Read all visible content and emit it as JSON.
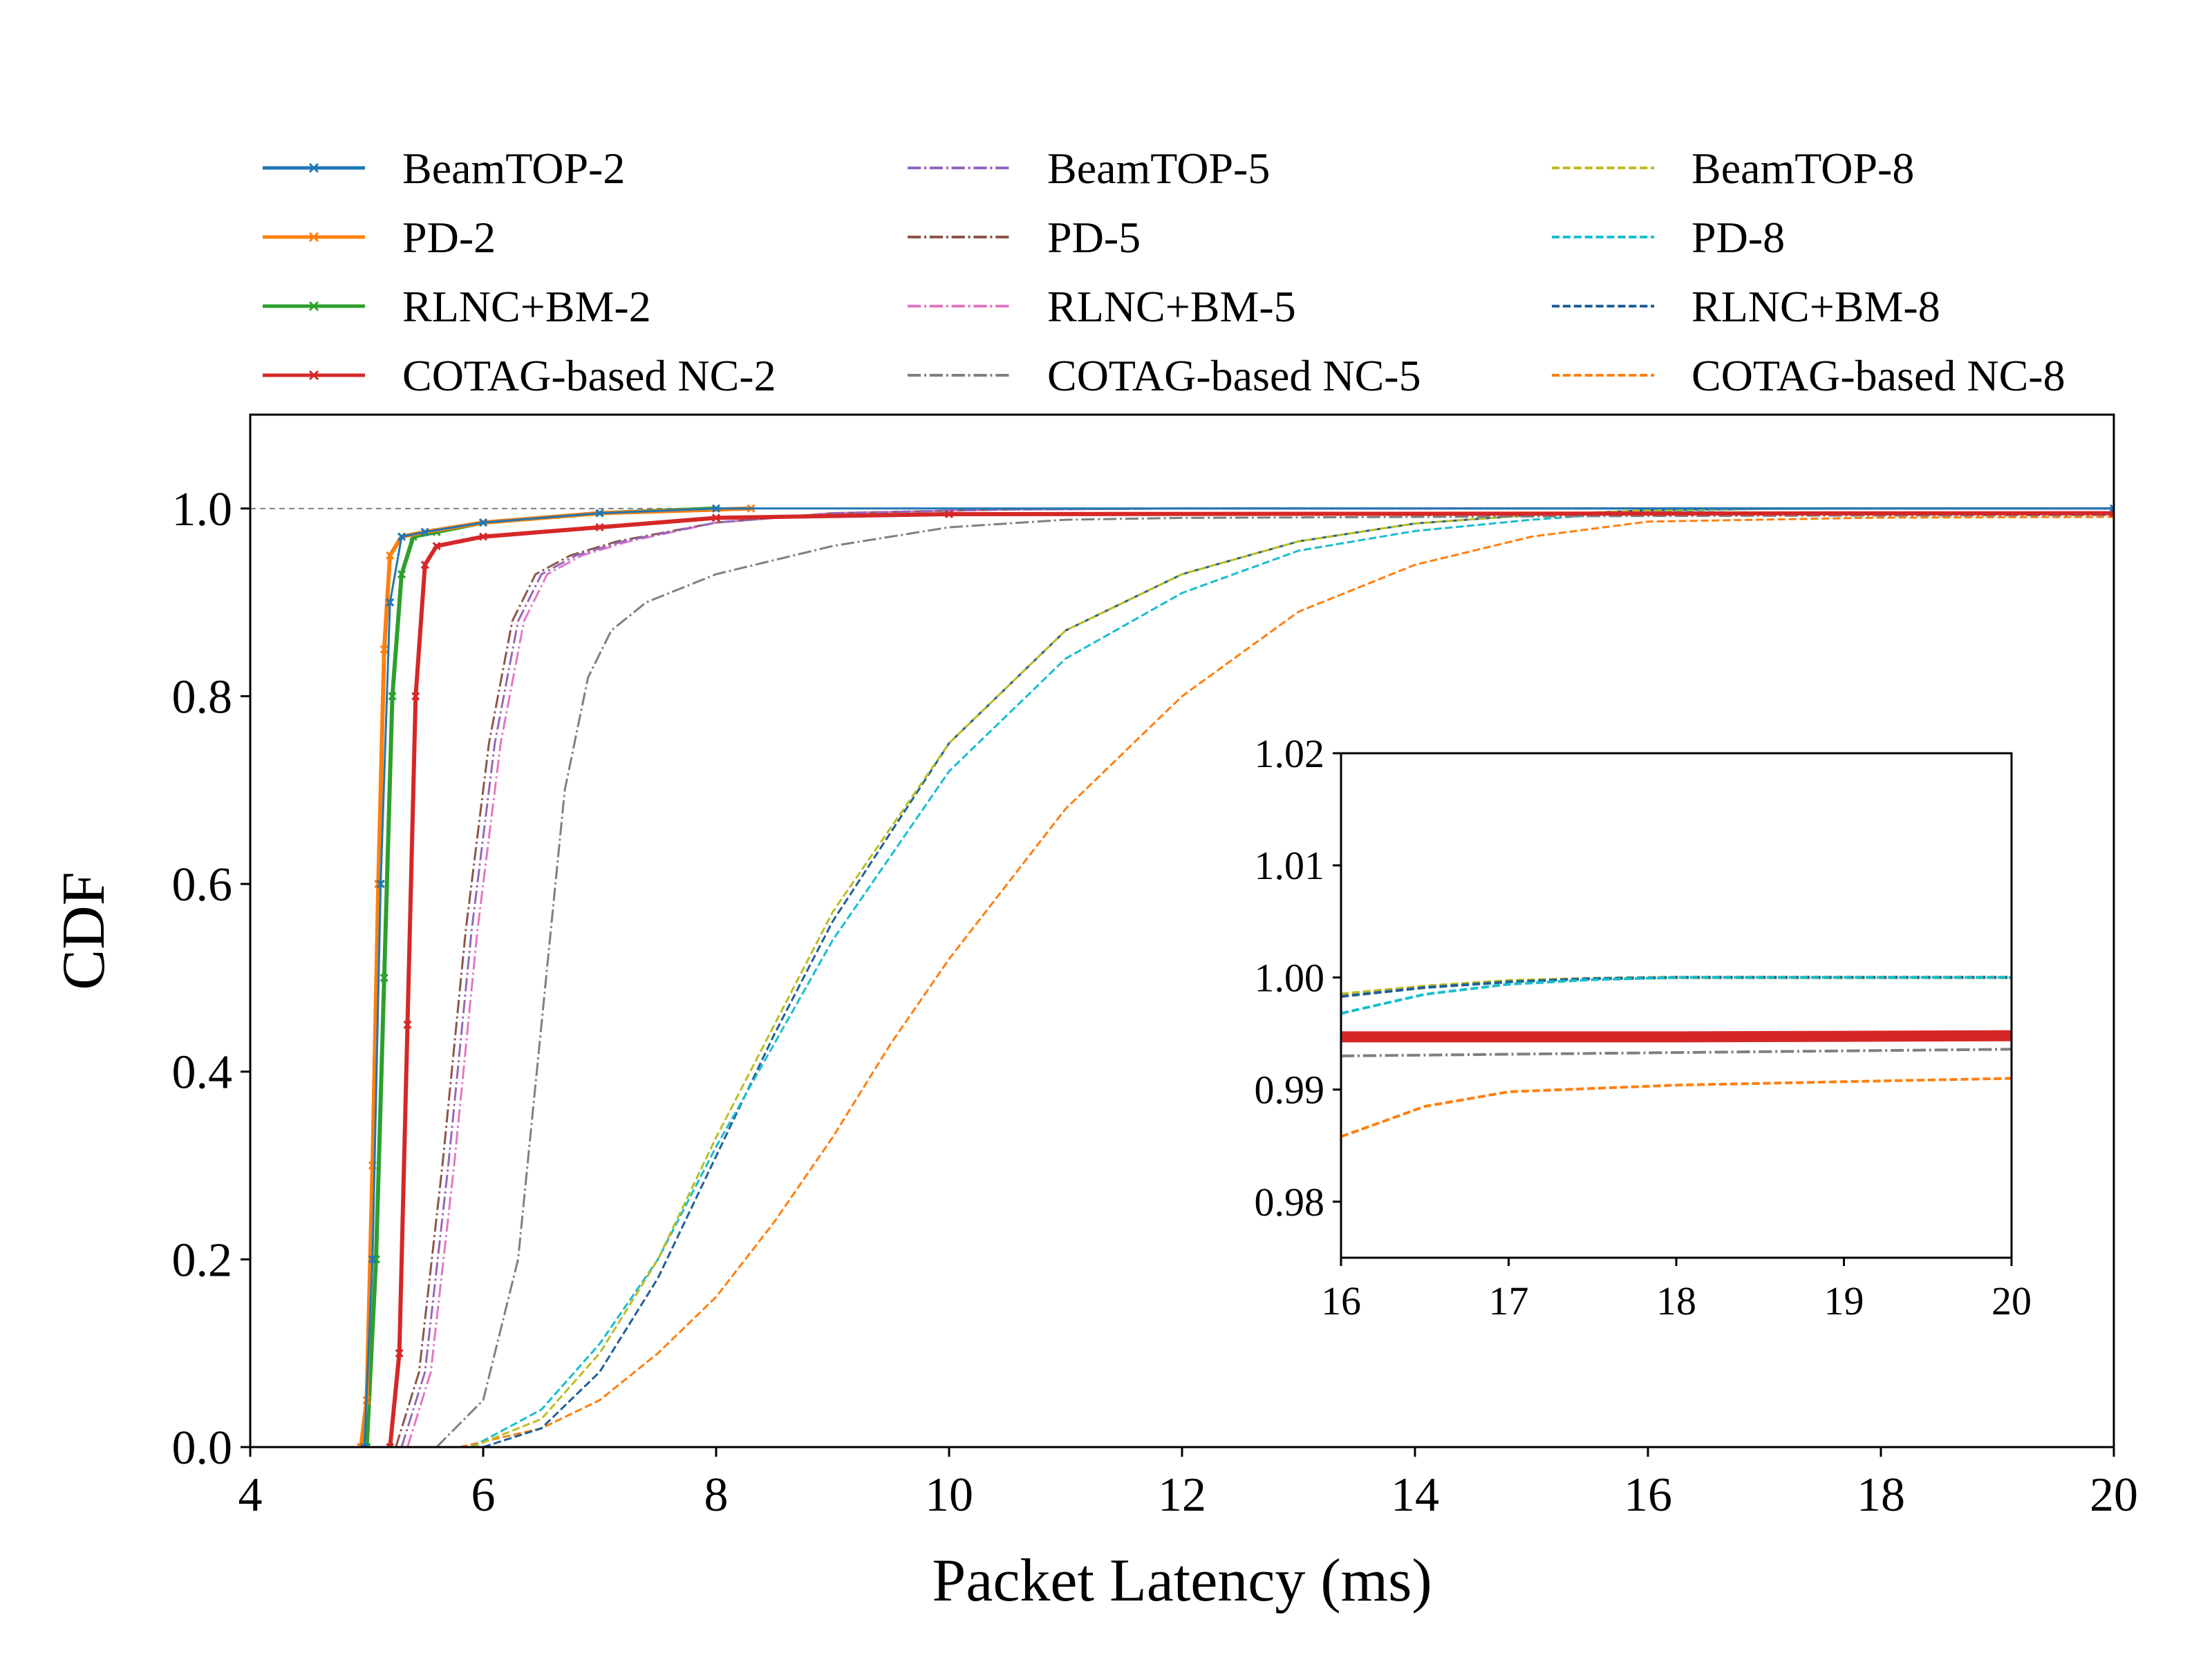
{
  "chart_data": [
    {
      "type": "line",
      "xlabel": "Packet Latency (ms)",
      "ylabel": "CDF",
      "xlim": [
        4,
        20
      ],
      "ylim": [
        0,
        1.1
      ],
      "xticks": [
        4,
        6,
        8,
        10,
        12,
        14,
        16,
        18,
        20
      ],
      "yticks": [
        0.0,
        0.2,
        0.4,
        0.6,
        0.8,
        1.0
      ],
      "ytick_labels": [
        "0.0",
        "0.2",
        "0.4",
        "0.6",
        "0.8",
        "1.0"
      ],
      "reference_line": {
        "y": 1.0,
        "style": "dashed",
        "color": "#808080"
      },
      "legend": {
        "placement": "top, above plot",
        "columns": 3
      },
      "grid": false,
      "series": [
        {
          "name": "BeamTOP-2",
          "color": "#1f77b4",
          "style": "solid-x",
          "width": 3,
          "x": [
            4.98,
            5.05,
            5.12,
            5.2,
            5.3,
            5.5,
            6.0,
            7.0,
            8.0,
            20.0
          ],
          "y": [
            0.0,
            0.2,
            0.6,
            0.9,
            0.97,
            0.975,
            0.985,
            0.995,
            1.0,
            1.0
          ]
        },
        {
          "name": "PD-2",
          "color": "#ff7f0e",
          "style": "solid-x",
          "width": 6,
          "x": [
            4.95,
            5.0,
            5.05,
            5.1,
            5.15,
            5.2,
            5.3,
            5.5,
            6.0,
            7.0,
            8.3
          ],
          "y": [
            0.0,
            0.05,
            0.3,
            0.6,
            0.85,
            0.95,
            0.97,
            0.975,
            0.985,
            0.995,
            1.0
          ]
        },
        {
          "name": "RLNC+BM-2",
          "color": "#2ca02c",
          "style": "solid-x",
          "width": 6,
          "x": [
            5.0,
            5.08,
            5.15,
            5.22,
            5.3,
            5.4,
            5.6,
            6.0,
            7.0,
            8.0
          ],
          "y": [
            0.0,
            0.2,
            0.5,
            0.8,
            0.93,
            0.97,
            0.975,
            0.985,
            0.995,
            1.0
          ]
        },
        {
          "name": "COTAG-based NC-2",
          "color": "#d62728",
          "style": "solid-x",
          "width": 6,
          "x": [
            5.2,
            5.28,
            5.35,
            5.42,
            5.5,
            5.6,
            6.0,
            7.0,
            8.0,
            10.0,
            20.0
          ],
          "y": [
            0.0,
            0.1,
            0.45,
            0.8,
            0.94,
            0.96,
            0.97,
            0.98,
            0.99,
            0.994,
            0.995
          ]
        },
        {
          "name": "BeamTOP-5",
          "color": "#9467bd",
          "style": "dashdot",
          "width": 3,
          "x": [
            5.3,
            5.5,
            5.7,
            5.9,
            6.1,
            6.3,
            6.5,
            6.8,
            7.2,
            8.0,
            9.0,
            10.5,
            12.0,
            20.0
          ],
          "y": [
            0.0,
            0.08,
            0.3,
            0.55,
            0.75,
            0.88,
            0.93,
            0.95,
            0.965,
            0.985,
            0.995,
            0.999,
            1.0,
            1.0
          ]
        },
        {
          "name": "PD-5",
          "color": "#8c564b",
          "style": "dashdot",
          "width": 3,
          "x": [
            5.25,
            5.45,
            5.65,
            5.85,
            6.05,
            6.25,
            6.45,
            6.75,
            7.15,
            8.0,
            9.0,
            10.5,
            12.0,
            20.0
          ],
          "y": [
            0.0,
            0.08,
            0.3,
            0.55,
            0.75,
            0.88,
            0.93,
            0.95,
            0.965,
            0.985,
            0.995,
            0.999,
            1.0,
            1.0
          ]
        },
        {
          "name": "RLNC+BM-5",
          "color": "#e377c2",
          "style": "dashdot",
          "width": 3,
          "x": [
            5.35,
            5.55,
            5.75,
            5.95,
            6.15,
            6.35,
            6.55,
            6.85,
            7.25,
            8.0,
            9.0,
            10.5,
            12.0,
            20.0
          ],
          "y": [
            0.0,
            0.08,
            0.3,
            0.55,
            0.75,
            0.88,
            0.93,
            0.95,
            0.965,
            0.985,
            0.995,
            0.999,
            1.0,
            1.0
          ]
        },
        {
          "name": "COTAG-based NC-5",
          "color": "#7f7f7f",
          "style": "dashdot",
          "width": 3,
          "x": [
            5.6,
            6.0,
            6.3,
            6.5,
            6.7,
            6.9,
            7.1,
            7.4,
            8.0,
            9.0,
            10.0,
            11.0,
            12.0,
            16.0,
            20.0
          ],
          "y": [
            0.0,
            0.05,
            0.2,
            0.45,
            0.7,
            0.82,
            0.87,
            0.9,
            0.93,
            0.96,
            0.98,
            0.988,
            0.99,
            0.992,
            0.993
          ]
        },
        {
          "name": "BeamTOP-8",
          "color": "#bcbd22",
          "style": "dashed",
          "width": 3,
          "x": [
            5.9,
            6.5,
            7.0,
            7.5,
            8.0,
            8.5,
            9.0,
            10.0,
            11.0,
            12.0,
            13.0,
            14.0,
            15.0,
            16.0,
            17.0,
            18.0,
            20.0
          ],
          "y": [
            0.0,
            0.03,
            0.1,
            0.2,
            0.33,
            0.45,
            0.57,
            0.75,
            0.87,
            0.93,
            0.965,
            0.984,
            0.993,
            0.998,
            0.9997,
            1.0,
            1.0
          ]
        },
        {
          "name": "PD-8",
          "color": "#17becf",
          "style": "dashed",
          "width": 3,
          "x": [
            5.9,
            6.5,
            7.0,
            7.5,
            8.0,
            8.5,
            9.0,
            10.0,
            11.0,
            12.0,
            13.0,
            14.0,
            15.0,
            16.0,
            17.0,
            18.0,
            20.0
          ],
          "y": [
            0.0,
            0.04,
            0.11,
            0.2,
            0.32,
            0.43,
            0.54,
            0.72,
            0.84,
            0.91,
            0.955,
            0.976,
            0.988,
            0.997,
            0.9995,
            1.0,
            1.0
          ]
        },
        {
          "name": "RLNC+BM-8",
          "color": "#1f5f99",
          "style": "dashed",
          "width": 3,
          "x": [
            6.0,
            6.5,
            7.0,
            7.5,
            8.0,
            8.5,
            9.0,
            10.0,
            11.0,
            12.0,
            13.0,
            14.0,
            15.0,
            16.0,
            17.0,
            18.0,
            20.0
          ],
          "y": [
            0.0,
            0.02,
            0.08,
            0.18,
            0.31,
            0.44,
            0.56,
            0.75,
            0.87,
            0.93,
            0.965,
            0.984,
            0.993,
            0.998,
            0.9997,
            1.0,
            1.0
          ]
        },
        {
          "name": "COTAG-based NC-8",
          "color": "#ff7f0e",
          "style": "dashed",
          "width": 3,
          "x": [
            5.8,
            6.5,
            7.0,
            7.5,
            8.0,
            8.5,
            9.0,
            9.5,
            10.0,
            11.0,
            12.0,
            13.0,
            14.0,
            15.0,
            16.0,
            18.0,
            20.0
          ],
          "y": [
            0.0,
            0.02,
            0.05,
            0.1,
            0.16,
            0.24,
            0.33,
            0.43,
            0.52,
            0.68,
            0.8,
            0.89,
            0.94,
            0.97,
            0.986,
            0.9903,
            0.991
          ]
        }
      ]
    },
    {
      "type": "line",
      "inset": true,
      "xlim": [
        16,
        20
      ],
      "ylim": [
        0.975,
        1.02
      ],
      "xticks": [
        16,
        17,
        18,
        19,
        20
      ],
      "yticks": [
        0.98,
        0.99,
        1.0,
        1.01,
        1.02
      ],
      "ytick_labels": [
        "0.98",
        "0.99",
        "1.00",
        "1.01",
        "1.02"
      ],
      "series": [
        {
          "name": "BeamTOP-8",
          "color": "#bcbd22",
          "style": "dashed",
          "width": 5,
          "x": [
            16,
            16.5,
            17,
            17.5,
            18,
            19,
            20
          ],
          "y": [
            0.9985,
            0.9992,
            0.9997,
            0.9999,
            1.0,
            1.0,
            1.0
          ]
        },
        {
          "name": "RLNC+BM-8",
          "color": "#1f5f99",
          "style": "dashed",
          "width": 4,
          "x": [
            16,
            16.5,
            17,
            17.5,
            18,
            19,
            20
          ],
          "y": [
            0.9983,
            0.9991,
            0.9996,
            0.9999,
            1.0,
            1.0,
            1.0
          ]
        },
        {
          "name": "PD-8",
          "color": "#17becf",
          "style": "dashed",
          "width": 4,
          "x": [
            16,
            16.5,
            17,
            17.5,
            18,
            19,
            20
          ],
          "y": [
            0.9968,
            0.9985,
            0.9994,
            0.9998,
            1.0,
            1.0,
            1.0
          ]
        },
        {
          "name": "COTAG-based NC-2",
          "color": "#d62728",
          "style": "solid",
          "width": 16,
          "x": [
            16,
            18,
            20
          ],
          "y": [
            0.9947,
            0.9947,
            0.9948
          ]
        },
        {
          "name": "COTAG-based NC-5",
          "color": "#7f7f7f",
          "style": "dashdot",
          "width": 4,
          "x": [
            16,
            18,
            20
          ],
          "y": [
            0.993,
            0.9933,
            0.9936
          ]
        },
        {
          "name": "COTAG-based NC-8",
          "color": "#ff7f0e",
          "style": "dashed",
          "width": 4,
          "x": [
            16,
            16.5,
            17,
            18,
            19,
            20
          ],
          "y": [
            0.9858,
            0.9885,
            0.9898,
            0.9904,
            0.9907,
            0.991
          ]
        }
      ]
    }
  ]
}
